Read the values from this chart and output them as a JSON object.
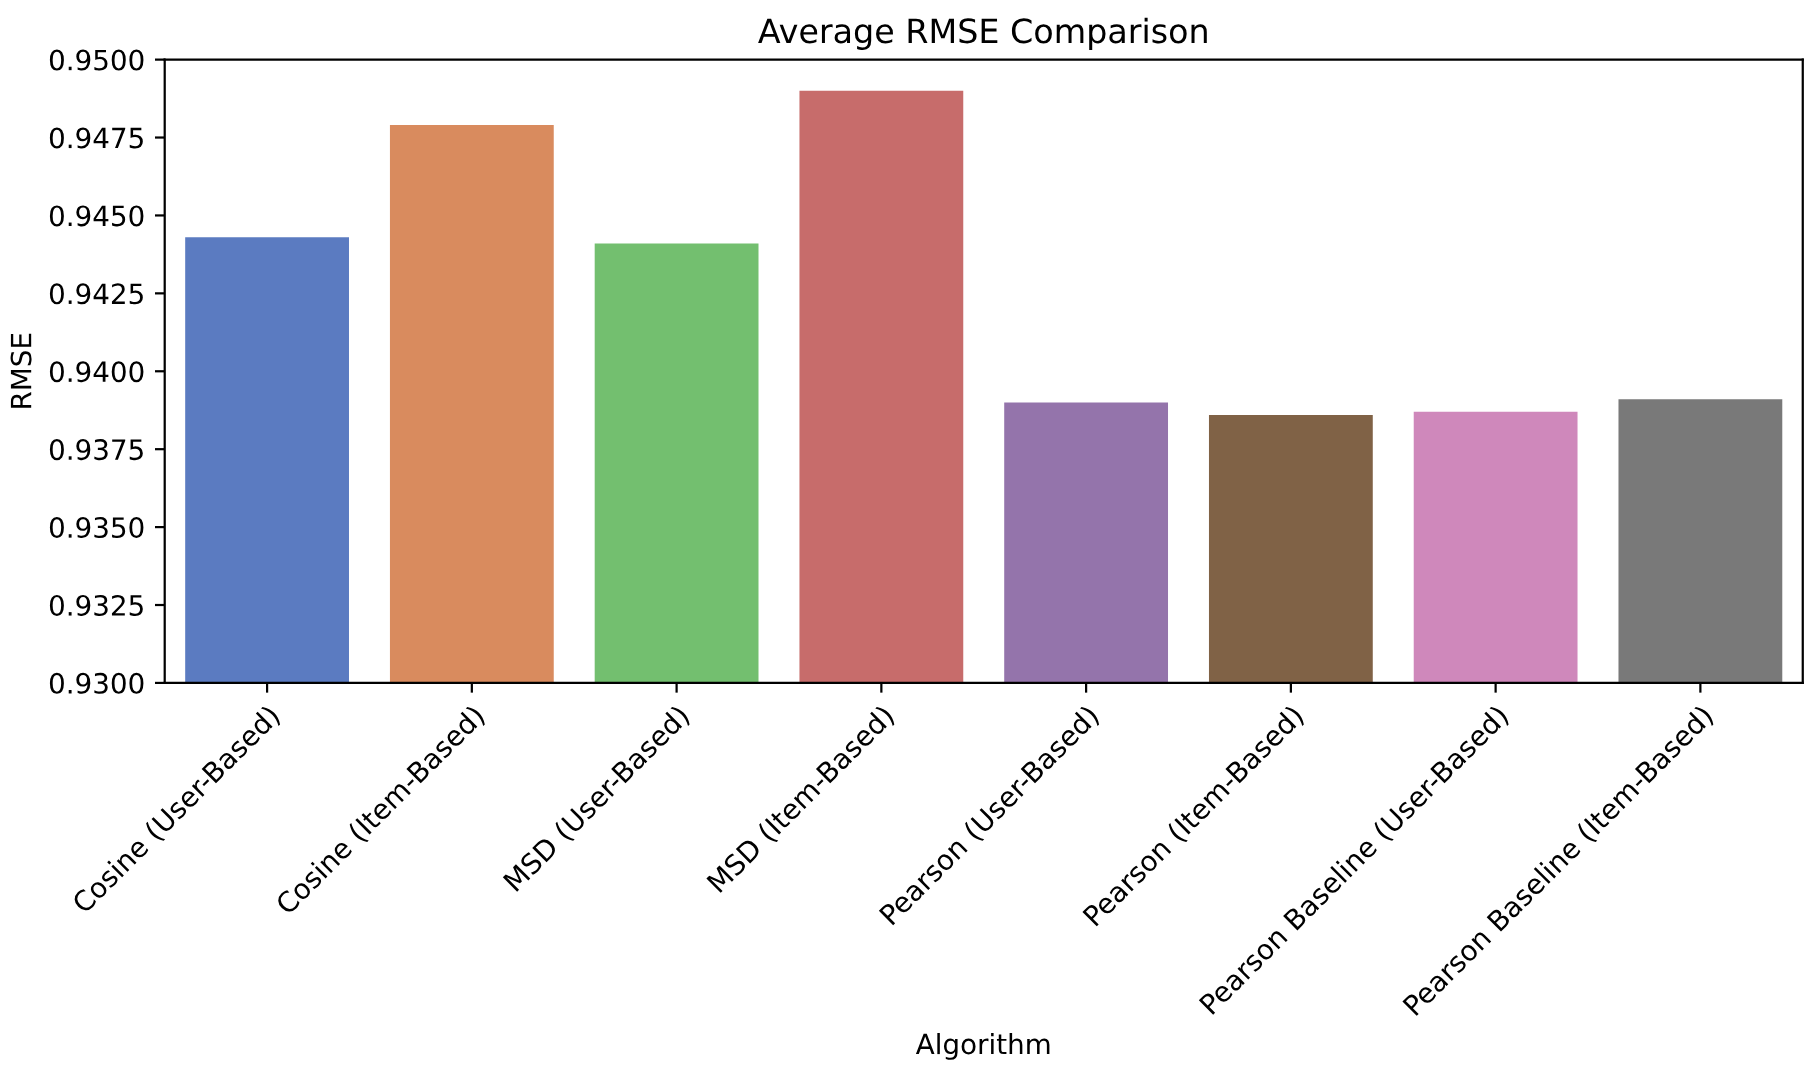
{
  "chart_data": {
    "type": "bar",
    "title": "Average RMSE Comparison",
    "xlabel": "Algorithm",
    "ylabel": "RMSE",
    "categories": [
      "Cosine (User-Based)",
      "Cosine (Item-Based)",
      "MSD (User-Based)",
      "MSD (Item-Based)",
      "Pearson (User-Based)",
      "Pearson (Item-Based)",
      "Pearson Baseline (User-Based)",
      "Pearson Baseline (Item-Based)"
    ],
    "values": [
      0.9443,
      0.9479,
      0.9441,
      0.949,
      0.939,
      0.9386,
      0.9387,
      0.9391
    ],
    "colors": [
      "#5b7bc1",
      "#d98b5e",
      "#73bf6f",
      "#c76c6b",
      "#9474ab",
      "#806246",
      "#cf88bb",
      "#797979"
    ],
    "ylim": [
      0.93,
      0.95
    ],
    "yticks": [
      {
        "value": 0.93,
        "label": "0.9300"
      },
      {
        "value": 0.9325,
        "label": "0.9325"
      },
      {
        "value": 0.935,
        "label": "0.9350"
      },
      {
        "value": 0.9375,
        "label": "0.9375"
      },
      {
        "value": 0.94,
        "label": "0.9400"
      },
      {
        "value": 0.9425,
        "label": "0.9425"
      },
      {
        "value": 0.945,
        "label": "0.9450"
      },
      {
        "value": 0.9475,
        "label": "0.9475"
      },
      {
        "value": 0.95,
        "label": "0.9500"
      }
    ],
    "grid": false,
    "legend": false
  }
}
